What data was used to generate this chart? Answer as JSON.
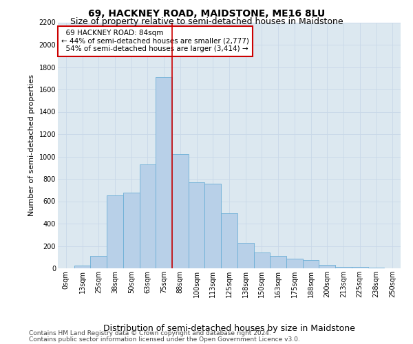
{
  "title": "69, HACKNEY ROAD, MAIDSTONE, ME16 8LU",
  "subtitle": "Size of property relative to semi-detached houses in Maidstone",
  "xlabel": "Distribution of semi-detached houses by size in Maidstone",
  "ylabel": "Number of semi-detached properties",
  "footer1": "Contains HM Land Registry data © Crown copyright and database right 2024.",
  "footer2": "Contains public sector information licensed under the Open Government Licence v3.0.",
  "bin_labels": [
    "0sqm",
    "13sqm",
    "25sqm",
    "38sqm",
    "50sqm",
    "63sqm",
    "75sqm",
    "88sqm",
    "100sqm",
    "113sqm",
    "125sqm",
    "138sqm",
    "150sqm",
    "163sqm",
    "175sqm",
    "188sqm",
    "200sqm",
    "213sqm",
    "225sqm",
    "238sqm",
    "250sqm"
  ],
  "bar_values": [
    0,
    25,
    110,
    650,
    680,
    930,
    1710,
    1020,
    770,
    760,
    490,
    225,
    140,
    110,
    85,
    75,
    30,
    15,
    10,
    5,
    0
  ],
  "bar_color": "#b8d0e8",
  "bar_edge_color": "#6baed6",
  "vline_x_index": 6.5,
  "property_label": "69 HACKNEY ROAD: 84sqm",
  "pct_smaller": 44,
  "n_smaller": 2777,
  "pct_larger": 54,
  "n_larger": 3414,
  "vline_color": "#cc0000",
  "annotation_box_color": "#cc0000",
  "ylim": [
    0,
    2200
  ],
  "yticks": [
    0,
    200,
    400,
    600,
    800,
    1000,
    1200,
    1400,
    1600,
    1800,
    2000,
    2200
  ],
  "grid_color": "#c8d8e8",
  "bg_color": "#dce8f0",
  "title_fontsize": 10,
  "subtitle_fontsize": 9,
  "ylabel_fontsize": 8,
  "xlabel_fontsize": 9,
  "tick_fontsize": 7,
  "footer_fontsize": 6.5,
  "ann_fontsize": 7.5
}
